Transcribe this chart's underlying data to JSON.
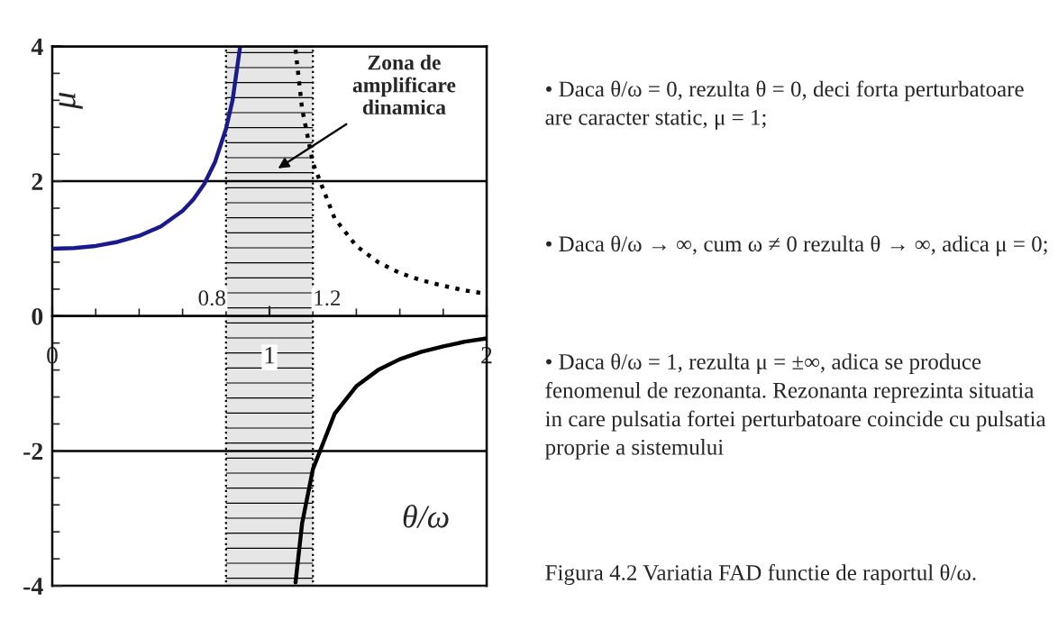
{
  "chart_data": {
    "type": "line",
    "xlabel": "θ/ω",
    "ylabel": "μ",
    "xlim": [
      0,
      2
    ],
    "ylim": [
      -4,
      4
    ],
    "xticks": [
      0,
      1,
      2
    ],
    "yticks": [
      -4,
      -2,
      0,
      2,
      4
    ],
    "series": [
      {
        "color": "#1a1a8c",
        "line_style": "solid",
        "x": [
          0,
          0.1,
          0.2,
          0.3,
          0.4,
          0.5,
          0.6,
          0.65,
          0.7,
          0.75,
          0.8,
          0.83,
          0.865
        ],
        "values": [
          1,
          1.01,
          1.04,
          1.1,
          1.19,
          1.33,
          1.56,
          1.73,
          1.96,
          2.29,
          2.78,
          3.2,
          4.0
        ]
      },
      {
        "color": "#000000",
        "line_style": "dotted",
        "x": [
          1.12,
          1.15,
          1.2,
          1.3,
          1.4,
          1.5,
          1.6,
          1.7,
          1.8,
          1.9,
          2
        ],
        "values": [
          3.95,
          3.08,
          2.27,
          1.45,
          1.04,
          0.8,
          0.64,
          0.53,
          0.45,
          0.38,
          0.33
        ]
      },
      {
        "color": "#000000",
        "line_style": "solid",
        "x": [
          1.12,
          1.15,
          1.2,
          1.3,
          1.4,
          1.5,
          1.6,
          1.7,
          1.8,
          1.9,
          2
        ],
        "values": [
          -3.95,
          -3.08,
          -2.27,
          -1.45,
          -1.04,
          -0.8,
          -0.64,
          -0.53,
          -0.45,
          -0.38,
          -0.33
        ]
      }
    ],
    "grid": "y",
    "bands": [
      {
        "axis": "x",
        "from": 0.8,
        "to": 1.2,
        "color": "#e6e6e6"
      }
    ],
    "annotations": [
      "Zona de\namplificare\ndinamica",
      "0.8",
      "1.2",
      "• Daca θ/ω = 0, rezulta θ = 0, deci forta perturbatoare are caracter static, μ = 1;",
      "• Daca θ/ω → ∞, cum ω ≠ 0 rezulta θ → ∞, adica μ = 0;",
      "• Daca θ/ω = 1, rezulta μ = ±∞, adica se produce fenomenul de rezonanta. Rezonanta reprezinta situatia in care pulsatia fortei perturbatoare coincide cu pulsatia proprie a sistemului",
      "Figura 4.2 Variatia FAD functie de raportul θ/ω."
    ]
  }
}
